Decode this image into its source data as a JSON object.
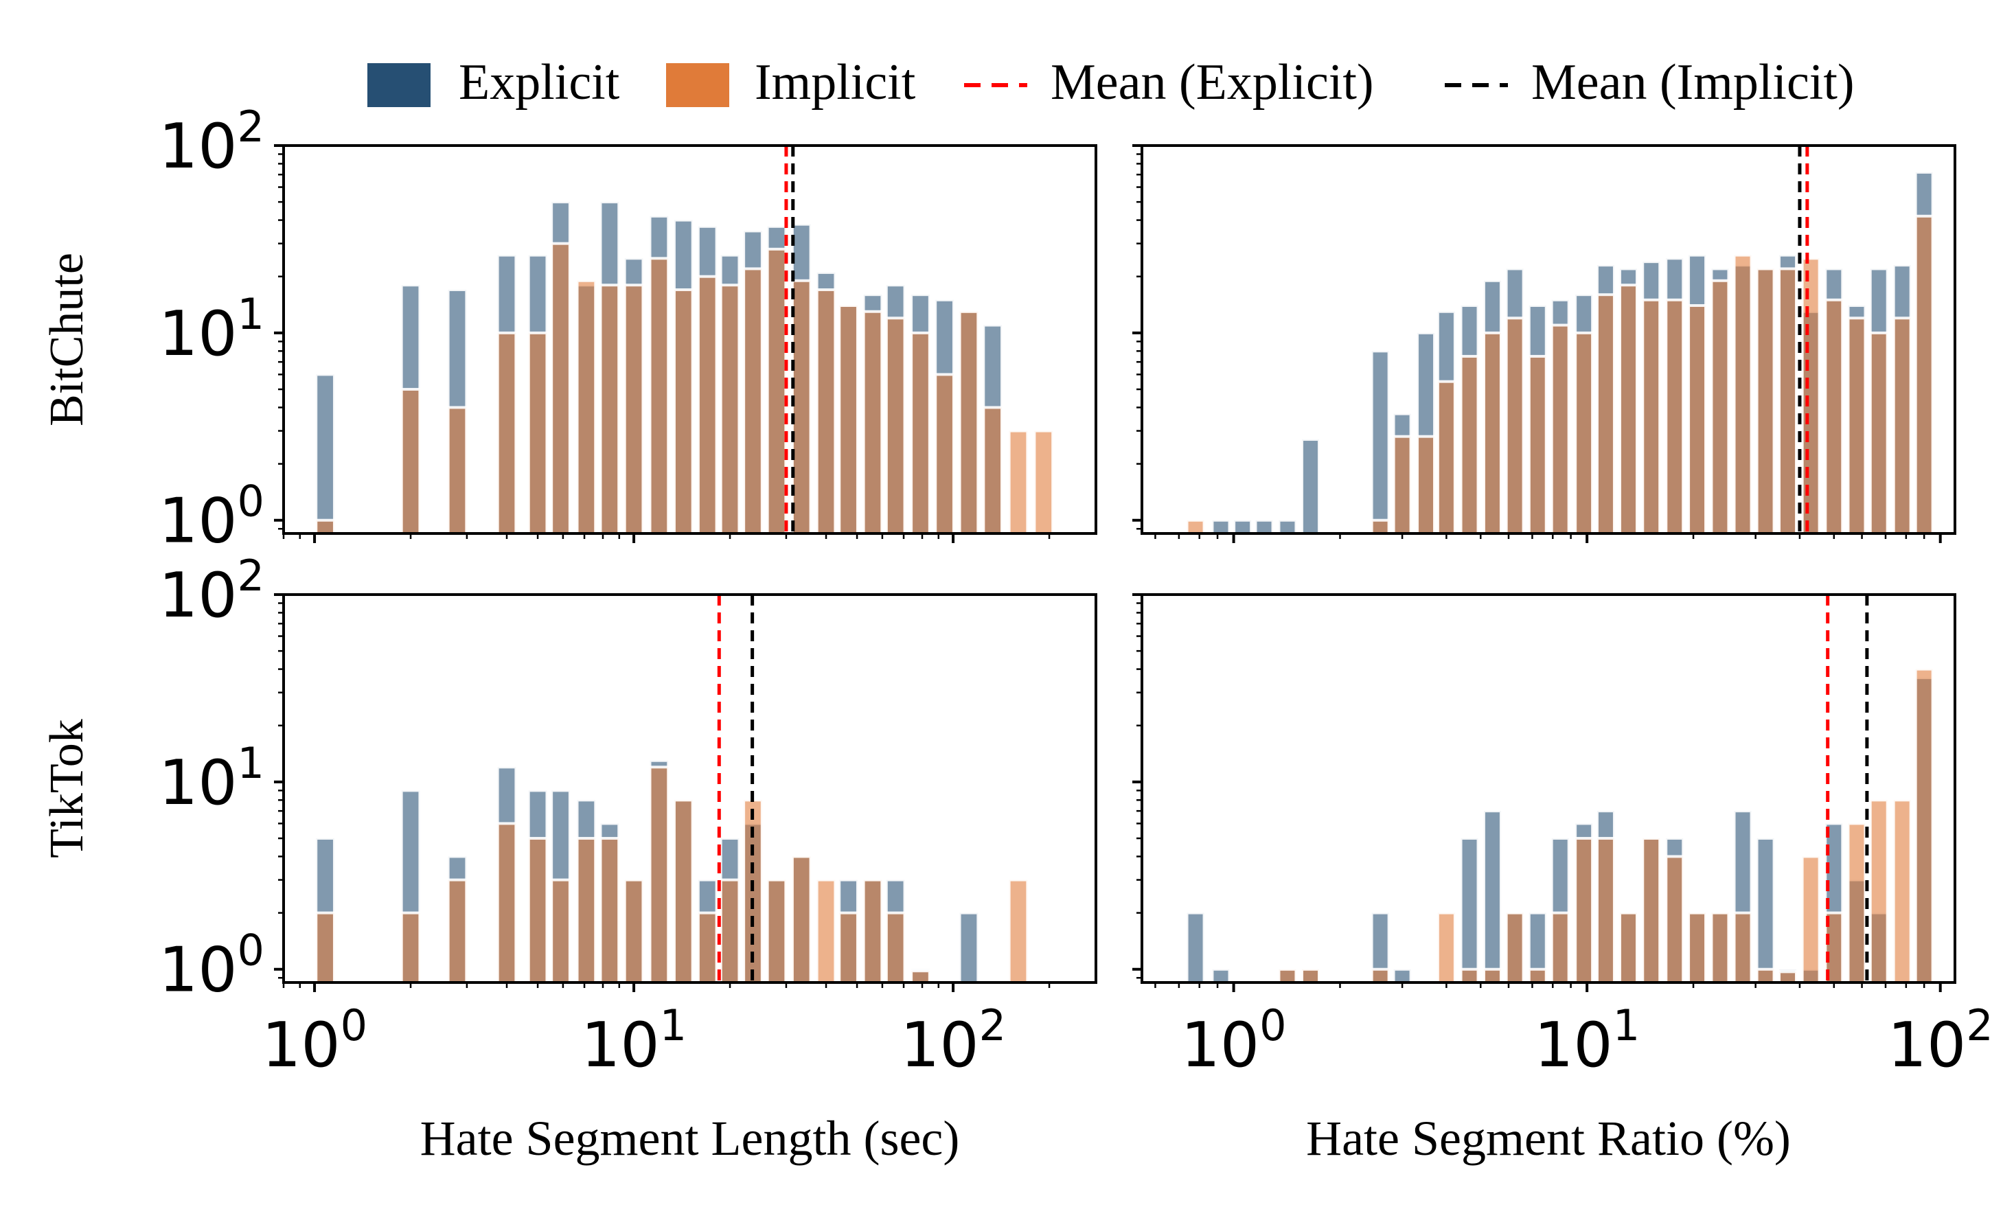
{
  "legend": {
    "placement": "top-center",
    "items": [
      {
        "label": "Explicit",
        "kind": "patch",
        "color": "#264f73"
      },
      {
        "label": "Implicit",
        "kind": "patch",
        "color": "#e07b39"
      },
      {
        "label": "Mean (Explicit)",
        "kind": "dashed-line",
        "color": "#ff0000"
      },
      {
        "label": "Mean (Implicit)",
        "kind": "dashed-line",
        "color": "#000000"
      }
    ]
  },
  "colors": {
    "explicit": "#264f73",
    "implicit": "#e07b39",
    "mean_explicit": "#ff0000",
    "mean_implicit": "#000000",
    "bar_alpha": 0.58
  },
  "rows": [
    "BitChute",
    "TikTok"
  ],
  "columns": [
    {
      "xlabel": "Hate Segment Length (sec)",
      "xlim": [
        0.8,
        280
      ]
    },
    {
      "xlabel": "Hate Segment Ratio (%)",
      "xlim": [
        0.55,
        110
      ]
    }
  ],
  "y_ticks": [
    "10^0",
    "10^1",
    "10^2"
  ],
  "x_ticks": [
    "10^0",
    "10^1",
    "10^2"
  ],
  "chart_data": [
    {
      "type": "bar",
      "row": "BitChute",
      "column": 0,
      "xscale": "log",
      "yscale": "log",
      "xlim": [
        0.8,
        280
      ],
      "ylim": [
        0.85,
        100
      ],
      "grid": false,
      "show_y_ticklabels": true,
      "show_x_ticklabels": false,
      "bin_width_factor": 1.18,
      "x": [
        1.08,
        2.0,
        2.8,
        4.0,
        5.0,
        5.9,
        7.1,
        8.4,
        10.0,
        12.0,
        14.3,
        17.0,
        20.0,
        23.6,
        28.0,
        33.5,
        40.0,
        47.0,
        56.0,
        66.0,
        79.0,
        94.0,
        112.0,
        133.0,
        160.0,
        192.0
      ],
      "series": [
        {
          "name": "Explicit",
          "values": [
            6,
            18,
            17,
            26,
            26,
            50,
            18,
            50,
            25,
            42,
            40,
            37,
            26,
            35,
            37,
            38,
            21,
            14,
            16,
            18,
            16,
            15,
            13,
            11,
            0,
            0
          ]
        },
        {
          "name": "Implicit",
          "values": [
            1,
            5,
            4,
            10,
            10,
            30,
            19,
            18,
            18,
            25,
            17,
            20,
            18,
            22,
            28,
            19,
            17,
            14,
            13,
            12,
            10,
            6,
            13,
            4,
            3,
            3
          ]
        }
      ],
      "mean_lines": {
        "explicit": 30.0,
        "implicit": 31.5
      }
    },
    {
      "type": "bar",
      "row": "BitChute",
      "column": 1,
      "xscale": "log",
      "yscale": "log",
      "xlim": [
        0.55,
        110
      ],
      "ylim": [
        0.85,
        100
      ],
      "grid": false,
      "show_y_ticklabels": false,
      "show_x_ticklabels": false,
      "bin_width_factor": 1.15,
      "x": [
        0.78,
        0.92,
        1.06,
        1.22,
        1.42,
        1.65,
        1.92,
        2.23,
        2.6,
        3.0,
        3.5,
        4.0,
        4.65,
        5.4,
        6.25,
        7.25,
        8.4,
        9.8,
        11.3,
        13.1,
        15.2,
        17.7,
        20.5,
        23.8,
        27.6,
        32.0,
        37.0,
        43.0,
        50.0,
        58.0,
        67.0,
        78.0,
        90.0
      ],
      "series": [
        {
          "name": "Explicit",
          "values": [
            0,
            1,
            1,
            1,
            1,
            2.7,
            0,
            0,
            8,
            3.7,
            10,
            13,
            14,
            19,
            22,
            14,
            15,
            16,
            23,
            22,
            24,
            25,
            26,
            22,
            23,
            22,
            26,
            13,
            22,
            14,
            22,
            23,
            72
          ]
        },
        {
          "name": "Implicit",
          "values": [
            1,
            0,
            0,
            0,
            0,
            0,
            0,
            0,
            1,
            2.8,
            2.8,
            5.5,
            7.5,
            10,
            12,
            7.5,
            11,
            10,
            16,
            18,
            15,
            15,
            14,
            19,
            26,
            22,
            22,
            25,
            15,
            12,
            10,
            12,
            42
          ]
        }
      ],
      "mean_lines": {
        "explicit": 42.0,
        "implicit": 40.0
      }
    },
    {
      "type": "bar",
      "row": "TikTok",
      "column": 0,
      "xscale": "log",
      "yscale": "log",
      "xlim": [
        0.8,
        280
      ],
      "ylim": [
        0.85,
        100
      ],
      "grid": false,
      "show_y_ticklabels": true,
      "show_x_ticklabels": true,
      "bin_width_factor": 1.18,
      "x": [
        1.08,
        2.0,
        2.8,
        4.0,
        5.0,
        5.9,
        7.1,
        8.4,
        10.0,
        12.0,
        14.3,
        17.0,
        20.0,
        23.6,
        28.0,
        33.5,
        40.0,
        47.0,
        56.0,
        66.0,
        79.0,
        94.0,
        112.0,
        133.0,
        160.0,
        192.0
      ],
      "series": [
        {
          "name": "Explicit",
          "values": [
            5,
            9,
            4,
            12,
            9,
            9,
            8,
            6,
            3,
            13,
            8,
            3,
            5,
            6,
            3,
            4,
            0,
            3,
            3,
            3,
            1,
            0,
            2,
            0,
            0,
            0
          ]
        },
        {
          "name": "Implicit",
          "values": [
            2,
            2,
            3,
            6,
            5,
            3,
            5,
            5,
            3,
            12,
            8,
            2,
            3,
            8,
            3,
            4,
            3,
            2,
            3,
            2,
            0.98,
            0,
            0,
            0,
            3,
            0
          ]
        }
      ],
      "mean_lines": {
        "explicit": 18.5,
        "implicit": 23.5
      }
    },
    {
      "type": "bar",
      "row": "TikTok",
      "column": 1,
      "xscale": "log",
      "yscale": "log",
      "xlim": [
        0.55,
        110
      ],
      "ylim": [
        0.85,
        100
      ],
      "grid": false,
      "show_y_ticklabels": false,
      "show_x_ticklabels": true,
      "bin_width_factor": 1.15,
      "x": [
        0.78,
        0.92,
        1.06,
        1.22,
        1.42,
        1.65,
        1.92,
        2.23,
        2.6,
        3.0,
        3.5,
        4.0,
        4.65,
        5.4,
        6.25,
        7.25,
        8.4,
        9.8,
        11.3,
        13.1,
        15.2,
        17.7,
        20.5,
        23.8,
        27.6,
        32.0,
        37.0,
        43.0,
        50.0,
        58.0,
        67.0,
        78.0,
        90.0
      ],
      "series": [
        {
          "name": "Explicit",
          "values": [
            2,
            1,
            0,
            0,
            1,
            1,
            0,
            0,
            2,
            1,
            0,
            0,
            5,
            7,
            2,
            2,
            5,
            6,
            7,
            2,
            5,
            5,
            2,
            2,
            7,
            5,
            1,
            1,
            6,
            3,
            2,
            0,
            36
          ]
        },
        {
          "name": "Implicit",
          "values": [
            0,
            0,
            0,
            0,
            1,
            1,
            0,
            0,
            1,
            0,
            0,
            2,
            1,
            1,
            2,
            1,
            2,
            5,
            5,
            2,
            5,
            4,
            2,
            2,
            2,
            1,
            0.97,
            4,
            2,
            6,
            8,
            8,
            40
          ]
        }
      ],
      "mean_lines": {
        "explicit": 48.0,
        "implicit": 62.0
      }
    }
  ]
}
